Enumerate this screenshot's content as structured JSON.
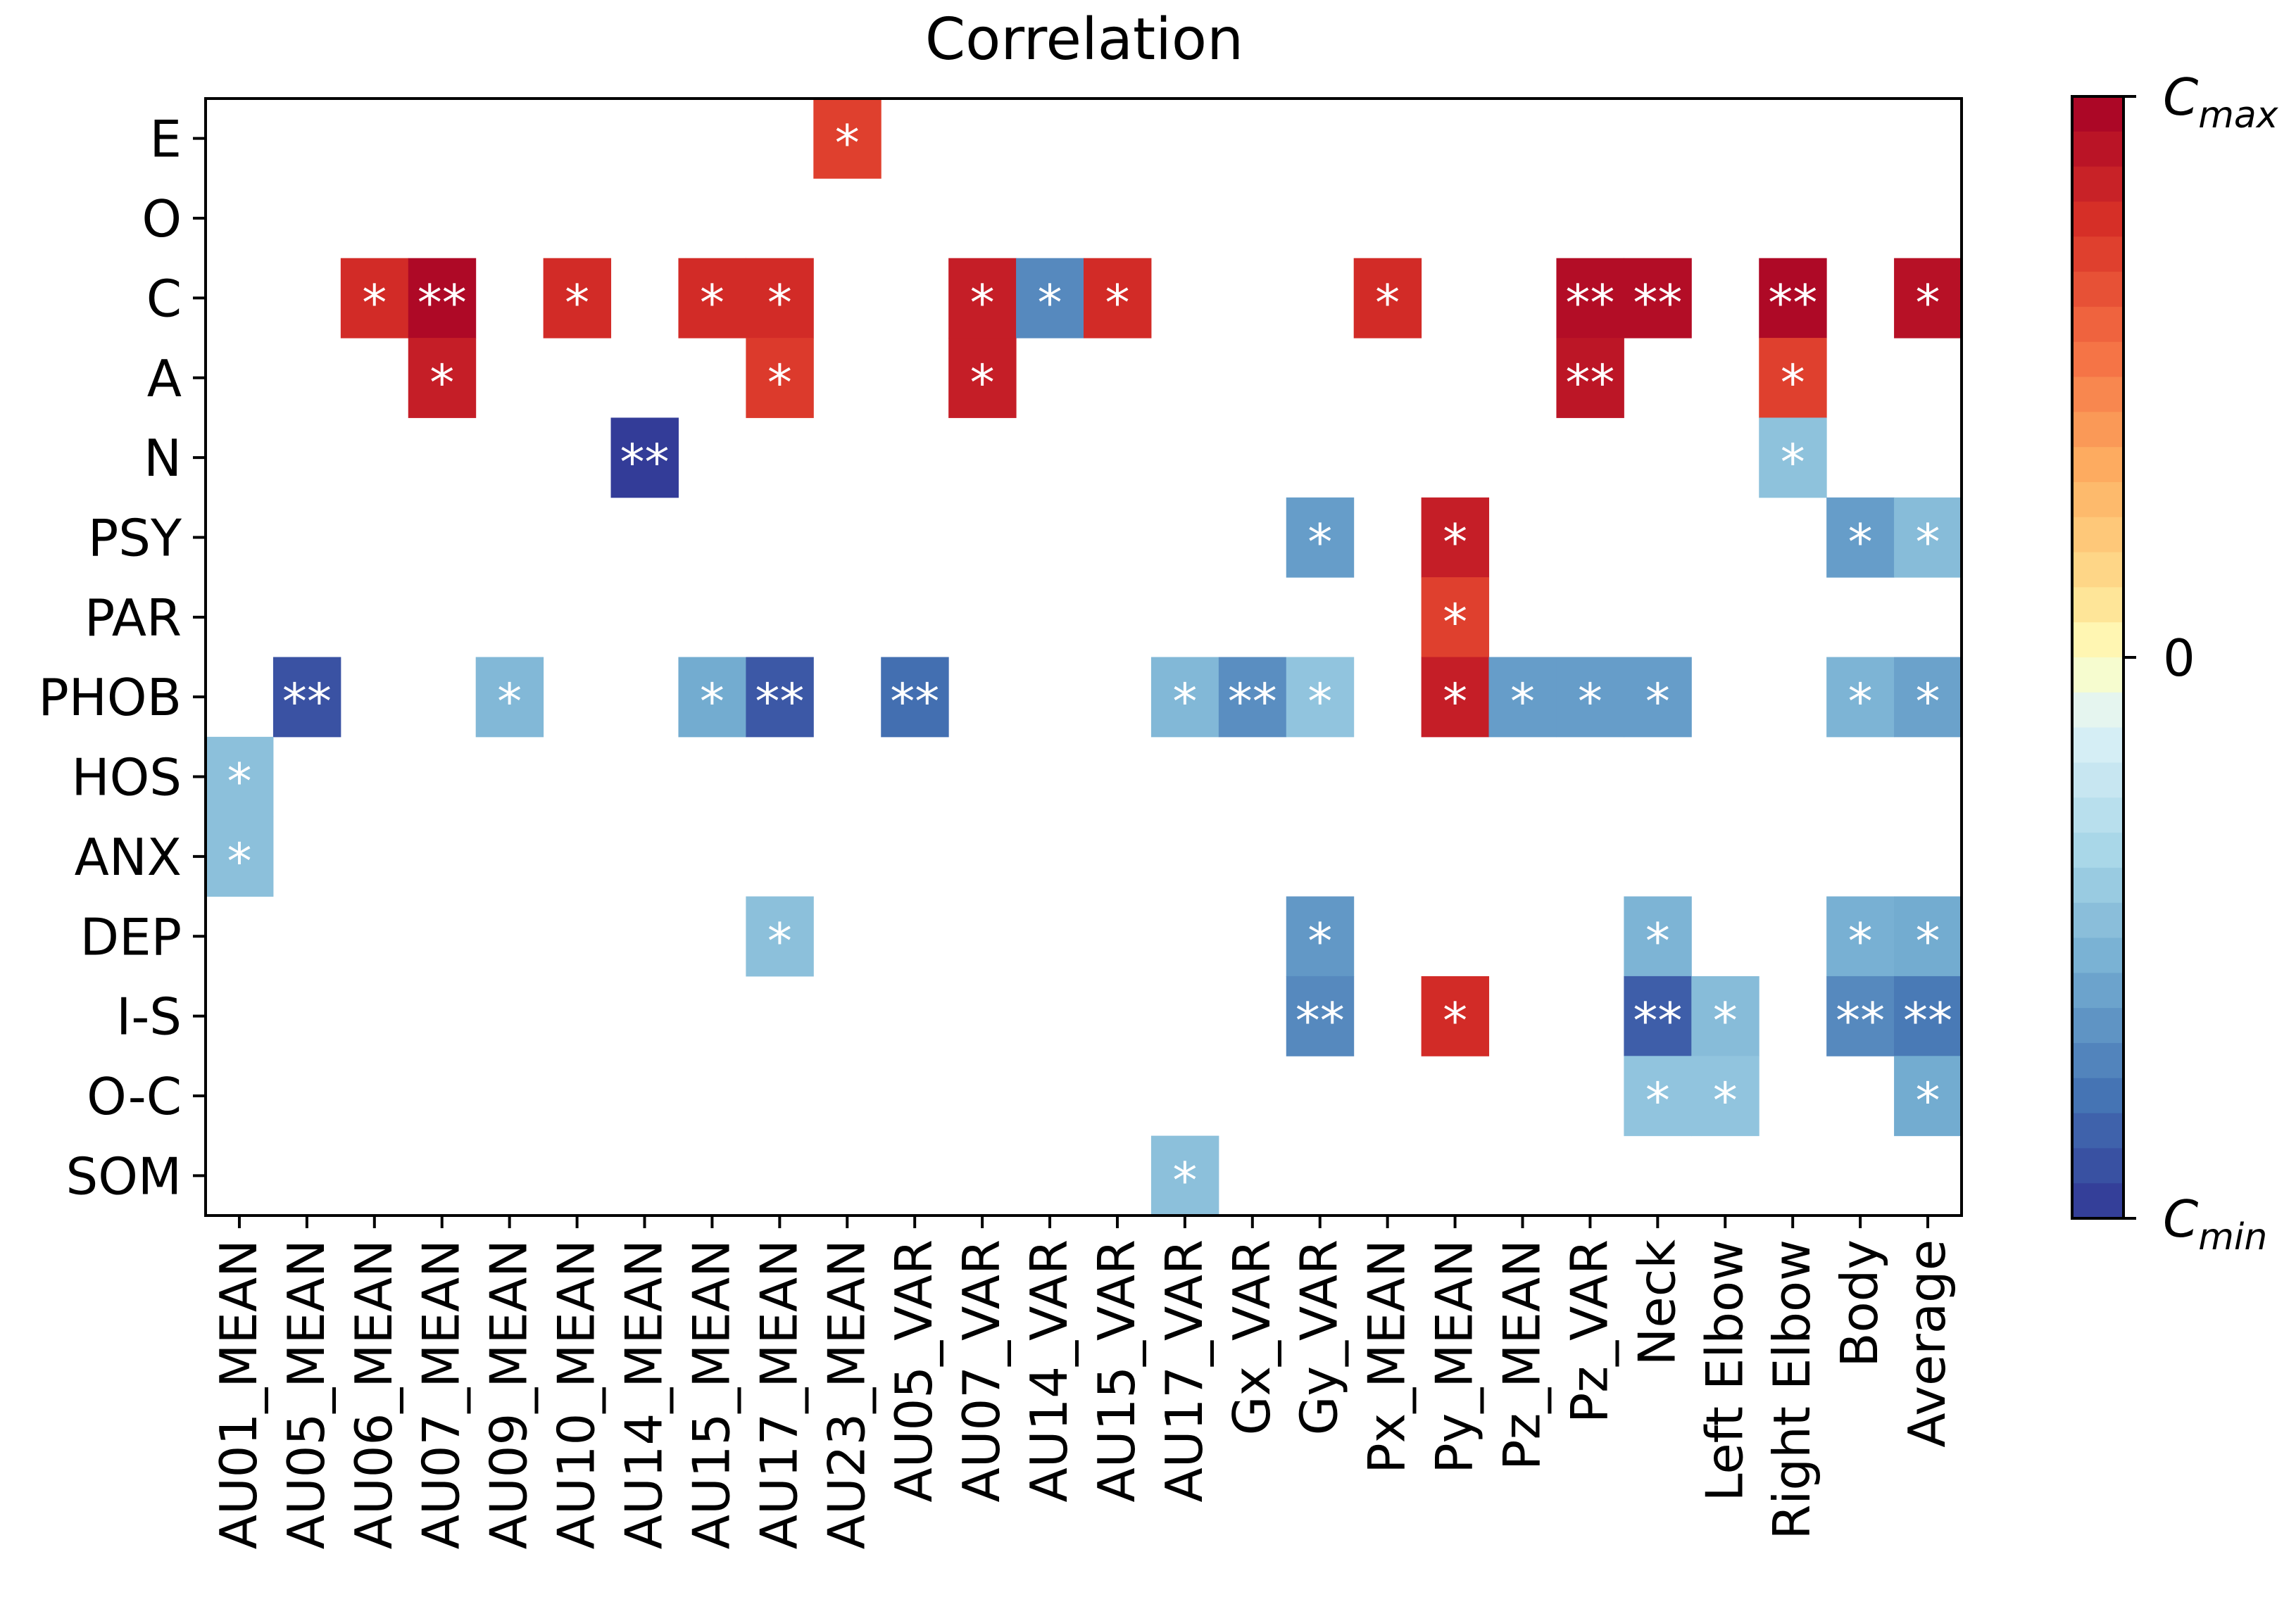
{
  "chart_data": {
    "type": "heatmap",
    "title": "Correlation",
    "xlabel": "",
    "ylabel": "",
    "rows": [
      "E",
      "O",
      "C",
      "A",
      "N",
      "PSY",
      "PAR",
      "PHOB",
      "HOS",
      "ANX",
      "DEP",
      "I-S",
      "O-C",
      "SOM"
    ],
    "columns": [
      "AU01_MEAN",
      "AU05_MEAN",
      "AU06_MEAN",
      "AU07_MEAN",
      "AU09_MEAN",
      "AU10_MEAN",
      "AU14_MEAN",
      "AU15_MEAN",
      "AU17_MEAN",
      "AU23_MEAN",
      "AU05_VAR",
      "AU07_VAR",
      "AU14_VAR",
      "AU15_VAR",
      "AU17_VAR",
      "Gx_VAR",
      "Gy_VAR",
      "Px_MEAN",
      "Py_MEAN",
      "Pz_MEAN",
      "Pz_VAR",
      "Neck",
      "Left Elbow",
      "Right Elbow",
      "Body",
      "Average"
    ],
    "colorbar": {
      "tick_labels": [
        "C_max",
        "0",
        "C_min"
      ],
      "tick_values": [
        1,
        0,
        -1
      ],
      "range": [
        -1,
        1
      ],
      "colormap": "RdYlBu_r",
      "levels": 32
    },
    "cells": [
      {
        "row": "E",
        "col": "AU23_MEAN",
        "value": 0.72,
        "label": "*"
      },
      {
        "row": "C",
        "col": "AU06_MEAN",
        "value": 0.8,
        "label": "*"
      },
      {
        "row": "C",
        "col": "AU07_MEAN",
        "value": 0.96,
        "label": "**"
      },
      {
        "row": "C",
        "col": "AU10_MEAN",
        "value": 0.8,
        "label": "*"
      },
      {
        "row": "C",
        "col": "AU15_MEAN",
        "value": 0.8,
        "label": "*"
      },
      {
        "row": "C",
        "col": "AU17_MEAN",
        "value": 0.8,
        "label": "*"
      },
      {
        "row": "C",
        "col": "AU07_VAR",
        "value": 0.86,
        "label": "*"
      },
      {
        "row": "C",
        "col": "AU14_VAR",
        "value": -0.7,
        "label": "*"
      },
      {
        "row": "C",
        "col": "AU15_VAR",
        "value": 0.8,
        "label": "*"
      },
      {
        "row": "C",
        "col": "Px_MEAN",
        "value": 0.8,
        "label": "*"
      },
      {
        "row": "C",
        "col": "Pz_VAR",
        "value": 0.94,
        "label": "**"
      },
      {
        "row": "C",
        "col": "Neck",
        "value": 0.94,
        "label": "**"
      },
      {
        "row": "C",
        "col": "Right Elbow",
        "value": 0.96,
        "label": "**"
      },
      {
        "row": "C",
        "col": "Average",
        "value": 0.92,
        "label": "*"
      },
      {
        "row": "A",
        "col": "AU07_MEAN",
        "value": 0.86,
        "label": "*"
      },
      {
        "row": "A",
        "col": "AU17_MEAN",
        "value": 0.74,
        "label": "*"
      },
      {
        "row": "A",
        "col": "AU07_VAR",
        "value": 0.86,
        "label": "*"
      },
      {
        "row": "A",
        "col": "Pz_VAR",
        "value": 0.9,
        "label": "**"
      },
      {
        "row": "A",
        "col": "Right Elbow",
        "value": 0.72,
        "label": "*"
      },
      {
        "row": "N",
        "col": "AU14_MEAN",
        "value": -0.98,
        "label": "**"
      },
      {
        "row": "N",
        "col": "Right Elbow",
        "value": -0.45,
        "label": "*"
      },
      {
        "row": "PSY",
        "col": "Gy_VAR",
        "value": -0.62,
        "label": "*"
      },
      {
        "row": "PSY",
        "col": "Py_MEAN",
        "value": 0.86,
        "label": "*"
      },
      {
        "row": "PSY",
        "col": "Body",
        "value": -0.62,
        "label": "*"
      },
      {
        "row": "PSY",
        "col": "Average",
        "value": -0.48,
        "label": "*"
      },
      {
        "row": "PAR",
        "col": "Py_MEAN",
        "value": 0.72,
        "label": "*"
      },
      {
        "row": "PHOB",
        "col": "AU05_MEAN",
        "value": -0.9,
        "label": "**"
      },
      {
        "row": "PHOB",
        "col": "AU09_MEAN",
        "value": -0.5,
        "label": "*"
      },
      {
        "row": "PHOB",
        "col": "AU15_MEAN",
        "value": -0.56,
        "label": "*"
      },
      {
        "row": "PHOB",
        "col": "AU17_MEAN",
        "value": -0.88,
        "label": "**"
      },
      {
        "row": "PHOB",
        "col": "AU05_VAR",
        "value": -0.8,
        "label": "**"
      },
      {
        "row": "PHOB",
        "col": "AU17_VAR",
        "value": -0.5,
        "label": "*"
      },
      {
        "row": "PHOB",
        "col": "Gx_VAR",
        "value": -0.68,
        "label": "**"
      },
      {
        "row": "PHOB",
        "col": "Gy_VAR",
        "value": -0.44,
        "label": "*"
      },
      {
        "row": "PHOB",
        "col": "Py_MEAN",
        "value": 0.86,
        "label": "*"
      },
      {
        "row": "PHOB",
        "col": "Pz_MEAN",
        "value": -0.62,
        "label": "*"
      },
      {
        "row": "PHOB",
        "col": "Pz_VAR",
        "value": -0.62,
        "label": "*"
      },
      {
        "row": "PHOB",
        "col": "Neck",
        "value": -0.62,
        "label": "*"
      },
      {
        "row": "PHOB",
        "col": "Body",
        "value": -0.52,
        "label": "*"
      },
      {
        "row": "PHOB",
        "col": "Average",
        "value": -0.6,
        "label": "*"
      },
      {
        "row": "HOS",
        "col": "AU01_MEAN",
        "value": -0.46,
        "label": "*"
      },
      {
        "row": "ANX",
        "col": "AU01_MEAN",
        "value": -0.46,
        "label": "*"
      },
      {
        "row": "DEP",
        "col": "AU17_MEAN",
        "value": -0.46,
        "label": "*"
      },
      {
        "row": "DEP",
        "col": "Gy_VAR",
        "value": -0.64,
        "label": "*"
      },
      {
        "row": "DEP",
        "col": "Neck",
        "value": -0.52,
        "label": "*"
      },
      {
        "row": "DEP",
        "col": "Body",
        "value": -0.54,
        "label": "*"
      },
      {
        "row": "DEP",
        "col": "Average",
        "value": -0.56,
        "label": "*"
      },
      {
        "row": "I-S",
        "col": "Gy_VAR",
        "value": -0.7,
        "label": "**"
      },
      {
        "row": "I-S",
        "col": "Py_MEAN",
        "value": 0.8,
        "label": "*"
      },
      {
        "row": "I-S",
        "col": "Neck",
        "value": -0.86,
        "label": "**"
      },
      {
        "row": "I-S",
        "col": "Left Elbow",
        "value": -0.48,
        "label": "*"
      },
      {
        "row": "I-S",
        "col": "Body",
        "value": -0.7,
        "label": "**"
      },
      {
        "row": "I-S",
        "col": "Average",
        "value": -0.76,
        "label": "**"
      },
      {
        "row": "O-C",
        "col": "Neck",
        "value": -0.44,
        "label": "*"
      },
      {
        "row": "O-C",
        "col": "Left Elbow",
        "value": -0.44,
        "label": "*"
      },
      {
        "row": "O-C",
        "col": "Average",
        "value": -0.56,
        "label": "*"
      },
      {
        "row": "SOM",
        "col": "AU17_VAR",
        "value": -0.46,
        "label": "*"
      }
    ]
  }
}
